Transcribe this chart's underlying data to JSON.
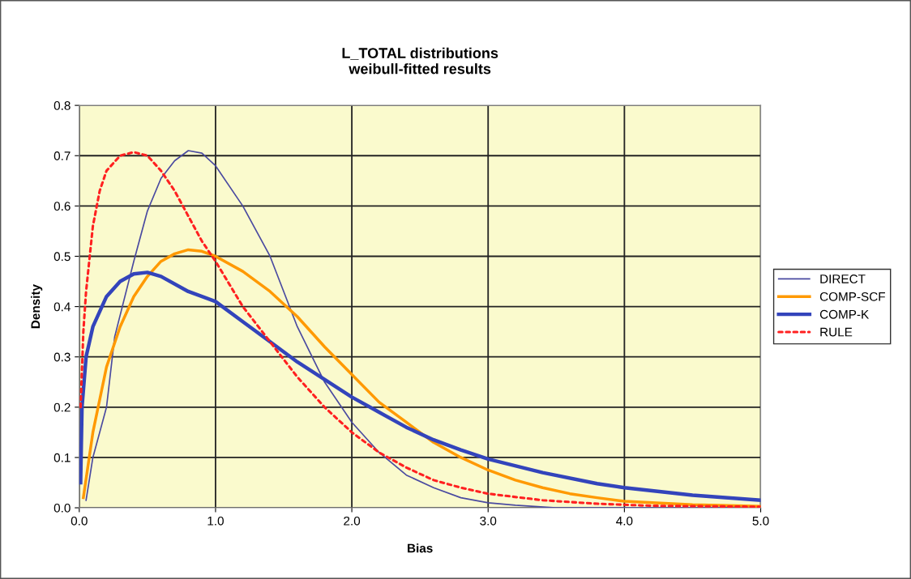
{
  "chart_data": {
    "type": "line",
    "title": "L_TOTAL distributions\nweibull-fitted results",
    "xlabel": "Bias",
    "ylabel": "Density",
    "xlim": [
      0,
      5
    ],
    "ylim": [
      0,
      0.8
    ],
    "xticks": [
      {
        "value": 0,
        "label": "0.0"
      },
      {
        "value": 1,
        "label": "1.0"
      },
      {
        "value": 2,
        "label": "2.0"
      },
      {
        "value": 3,
        "label": "3.0"
      },
      {
        "value": 4,
        "label": "4.0"
      },
      {
        "value": 5,
        "label": "5.0"
      }
    ],
    "yticks": [
      {
        "value": 0,
        "label": "0.0"
      },
      0.1,
      0.2,
      0.3,
      0.4,
      0.5,
      0.6,
      0.7,
      0.8
    ],
    "grid": true,
    "legend": "right",
    "marker": "none",
    "series": [
      {
        "name": "DIRECT",
        "color": "#4a4aa0",
        "line_style": "solid",
        "x": [
          0.05,
          0.1,
          0.2,
          0.26,
          0.4,
          0.5,
          0.6,
          0.7,
          0.8,
          0.9,
          1.0,
          1.2,
          1.4,
          1.6,
          1.8,
          2.0,
          2.2,
          2.4,
          2.6,
          2.8,
          3.0,
          3.2,
          3.5,
          4.0,
          5.0
        ],
        "values": [
          0.015,
          0.1,
          0.2,
          0.34,
          0.49,
          0.59,
          0.655,
          0.69,
          0.71,
          0.705,
          0.68,
          0.6,
          0.5,
          0.36,
          0.25,
          0.17,
          0.11,
          0.065,
          0.04,
          0.02,
          0.01,
          0.005,
          0.0,
          0.0,
          0.0
        ]
      },
      {
        "name": "COMP-SCF",
        "color": "#ff9900",
        "line_style": "solid",
        "x": [
          0.03,
          0.1,
          0.2,
          0.3,
          0.4,
          0.5,
          0.6,
          0.7,
          0.8,
          0.9,
          1.0,
          1.2,
          1.4,
          1.6,
          1.8,
          2.0,
          2.2,
          2.4,
          2.6,
          2.8,
          3.0,
          3.2,
          3.4,
          3.6,
          3.8,
          4.0,
          4.5,
          5.0
        ],
        "values": [
          0.02,
          0.15,
          0.28,
          0.36,
          0.42,
          0.46,
          0.49,
          0.505,
          0.513,
          0.51,
          0.5,
          0.47,
          0.43,
          0.38,
          0.32,
          0.265,
          0.21,
          0.17,
          0.13,
          0.1,
          0.075,
          0.055,
          0.04,
          0.028,
          0.02,
          0.013,
          0.006,
          0.003
        ]
      },
      {
        "name": "COMP-K",
        "color": "#3344bb",
        "line_style": "solid",
        "x": [
          0.01,
          0.02,
          0.05,
          0.1,
          0.2,
          0.3,
          0.4,
          0.5,
          0.6,
          0.8,
          1.0,
          1.2,
          1.4,
          1.6,
          1.8,
          2.0,
          2.2,
          2.4,
          2.6,
          2.8,
          3.0,
          3.4,
          3.8,
          4.0,
          4.5,
          5.0
        ],
        "values": [
          0.05,
          0.2,
          0.3,
          0.36,
          0.42,
          0.45,
          0.465,
          0.468,
          0.46,
          0.43,
          0.41,
          0.37,
          0.33,
          0.29,
          0.255,
          0.22,
          0.19,
          0.16,
          0.135,
          0.115,
          0.097,
          0.07,
          0.048,
          0.04,
          0.025,
          0.015
        ]
      },
      {
        "name": "RULE",
        "color": "#ff2020",
        "line_style": "dotted",
        "x": [
          0.01,
          0.03,
          0.05,
          0.1,
          0.15,
          0.2,
          0.3,
          0.4,
          0.5,
          0.6,
          0.7,
          0.8,
          0.9,
          1.0,
          1.2,
          1.4,
          1.6,
          1.8,
          2.0,
          2.2,
          2.4,
          2.6,
          2.8,
          3.0,
          3.4,
          3.8,
          4.2,
          5.0
        ],
        "values": [
          0.2,
          0.35,
          0.43,
          0.56,
          0.63,
          0.67,
          0.7,
          0.707,
          0.7,
          0.67,
          0.63,
          0.58,
          0.53,
          0.49,
          0.4,
          0.33,
          0.26,
          0.2,
          0.15,
          0.11,
          0.08,
          0.055,
          0.04,
          0.028,
          0.015,
          0.008,
          0.004,
          0.002
        ]
      }
    ]
  }
}
